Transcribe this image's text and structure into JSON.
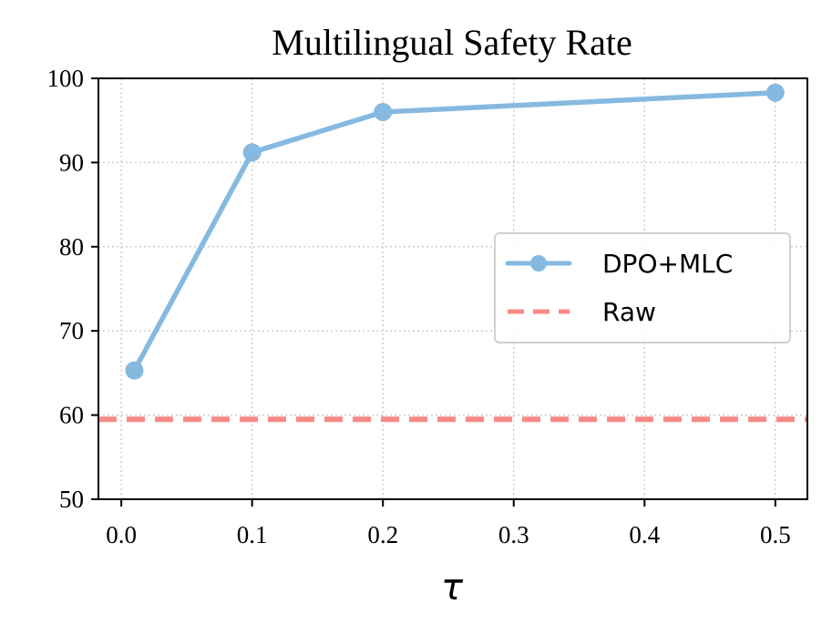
{
  "chart_data": {
    "type": "line",
    "title": "Multilingual Safety Rate",
    "xlabel": "τ",
    "ylabel": "",
    "xlim": [
      -0.0175,
      0.5245
    ],
    "ylim": [
      50,
      100
    ],
    "xticks": [
      0.0,
      0.1,
      0.2,
      0.3,
      0.4,
      0.5
    ],
    "xtick_labels": [
      "0.0",
      "0.1",
      "0.2",
      "0.3",
      "0.4",
      "0.5"
    ],
    "yticks": [
      50,
      60,
      70,
      80,
      90,
      100
    ],
    "ytick_labels": [
      "50",
      "60",
      "70",
      "80",
      "90",
      "100"
    ],
    "grid": true,
    "legend_position": "center-right",
    "series": [
      {
        "name": "DPO+MLC",
        "style": "line-with-markers",
        "color": "#85b9e0",
        "x": [
          0.01,
          0.1,
          0.2,
          0.5
        ],
        "y": [
          65.3,
          91.2,
          96.0,
          98.3
        ]
      },
      {
        "name": "Raw",
        "style": "dashed-horizontal",
        "color": "#f88a87",
        "y": 59.5
      }
    ]
  }
}
